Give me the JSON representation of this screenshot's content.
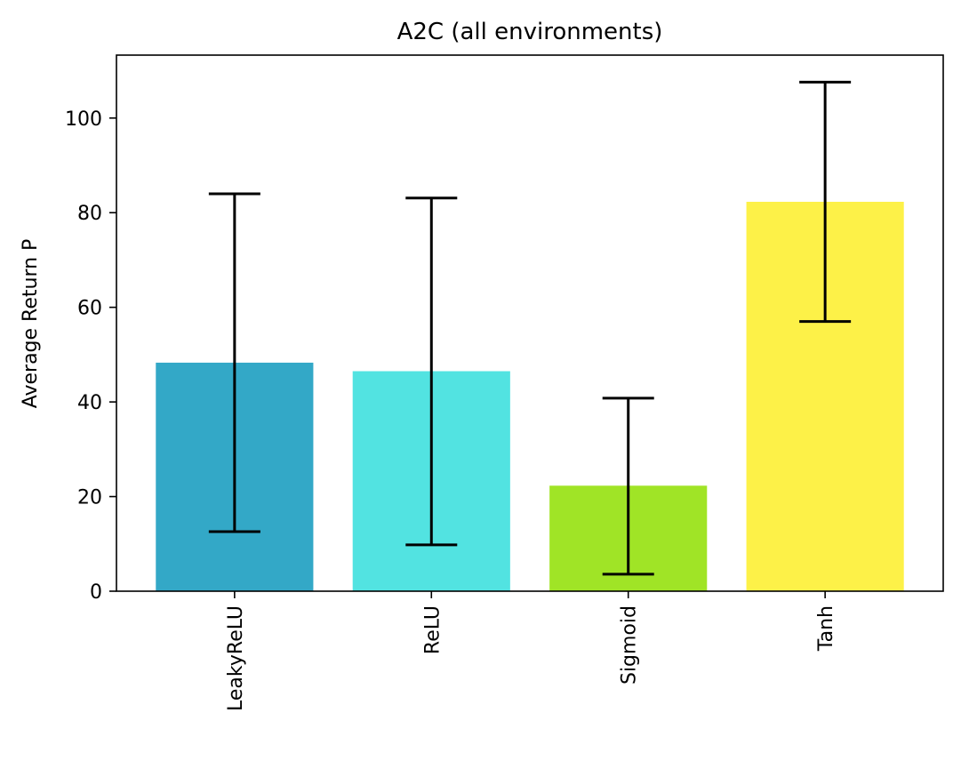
{
  "chart_data": {
    "type": "bar",
    "title": "A2C (all environments)",
    "xlabel": "",
    "ylabel": "Average Return P",
    "categories": [
      "LeakyReLU",
      "ReLU",
      "Sigmoid",
      "Tanh"
    ],
    "values": [
      48.3,
      46.5,
      22.3,
      82.3
    ],
    "error_low": [
      12.6,
      9.8,
      3.6,
      57.0
    ],
    "error_high": [
      84.0,
      83.1,
      40.8,
      107.6
    ],
    "colors": [
      "#33a8c7",
      "#52e3e1",
      "#a0e426",
      "#fdf148"
    ],
    "error_color": "#000000",
    "ylim": [
      0,
      113.3
    ],
    "yticks": [
      0,
      20,
      40,
      60,
      80,
      100
    ],
    "ytick_labels": [
      "0",
      "20",
      "40",
      "60",
      "80",
      "100"
    ],
    "xtick_rotation": 90,
    "grid": false,
    "legend": "none"
  }
}
